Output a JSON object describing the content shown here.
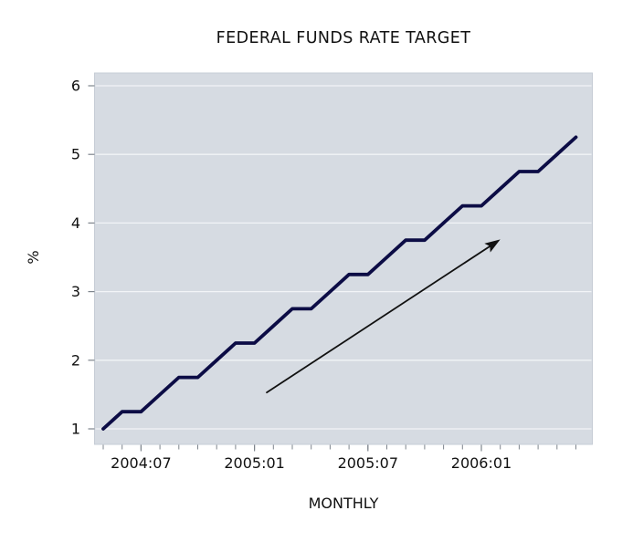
{
  "window": {
    "background": "#ffffff"
  },
  "chart_data": {
    "type": "line",
    "title": "FEDERAL FUNDS RATE TARGET",
    "xlabel": "MONTHLY",
    "ylabel": "%",
    "series_name": "Federal funds rate target",
    "x": [
      "2004:05",
      "2004:06",
      "2004:07",
      "2004:08",
      "2004:09",
      "2004:10",
      "2004:11",
      "2004:12",
      "2005:01",
      "2005:02",
      "2005:03",
      "2005:04",
      "2005:05",
      "2005:06",
      "2005:07",
      "2005:08",
      "2005:09",
      "2005:10",
      "2005:11",
      "2005:12",
      "2006:01",
      "2006:02",
      "2006:03",
      "2006:04",
      "2006:05",
      "2006:06"
    ],
    "values": [
      1.0,
      1.25,
      1.25,
      1.5,
      1.75,
      1.75,
      2.0,
      2.25,
      2.25,
      2.5,
      2.75,
      2.75,
      3.0,
      3.25,
      3.25,
      3.5,
      3.75,
      3.75,
      4.0,
      4.25,
      4.25,
      4.5,
      4.75,
      4.75,
      5.0,
      5.25
    ],
    "y_ticks": [
      1,
      2,
      3,
      4,
      5,
      6
    ],
    "ylim": [
      0.77,
      6.17
    ],
    "x_major_ticks": [
      {
        "index": 2,
        "label": "2004:07"
      },
      {
        "index": 8,
        "label": "2005:01"
      },
      {
        "index": 14,
        "label": "2005:07"
      },
      {
        "index": 20,
        "label": "2006:01"
      }
    ],
    "grid": "horizontal white gridlines at each integer",
    "legend": "none",
    "plot_background": "#d6dbe2",
    "gridline_color": "#f2f4f7",
    "line_color": "#0c0c45",
    "tick_color": "#7d848c",
    "annotation": {
      "type": "arrow",
      "description": "upward trend arrow",
      "from": {
        "month_index": 8.65,
        "value": 1.53
      },
      "to": {
        "month_index": 21.0,
        "value": 3.76
      },
      "color": "#111111"
    }
  }
}
